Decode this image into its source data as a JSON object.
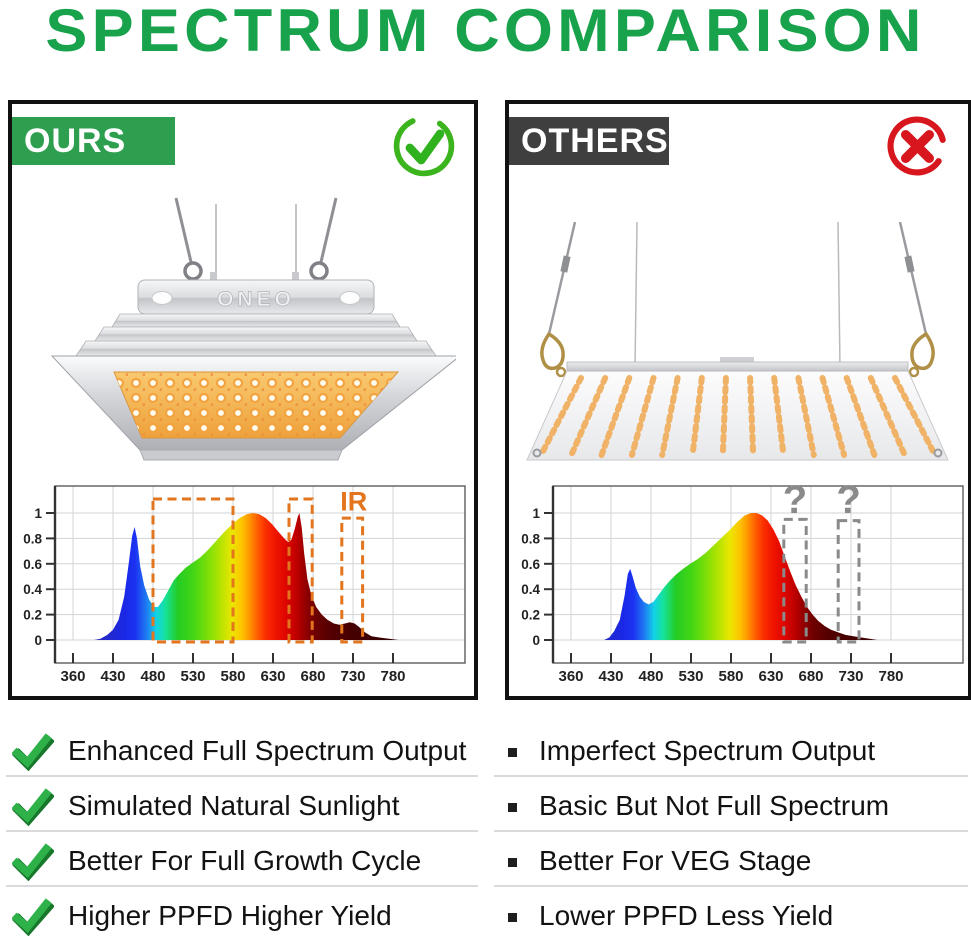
{
  "title": "SPECTRUM COMPARISON",
  "colors": {
    "title_green": "#18A24C",
    "badge_green": "#2E9E4F",
    "badge_dark": "#3F3F3F",
    "check_green": "#2FB14A",
    "cross_red": "#D7161E",
    "ir_orange": "#E2751D",
    "question_gray": "#8A8A8A"
  },
  "panels": {
    "ours": {
      "label": "OURS",
      "verdict": "pass",
      "brand": "ONEO"
    },
    "others": {
      "label": "OTHERS",
      "verdict": "fail"
    }
  },
  "features": {
    "ours": [
      "Enhanced Full Spectrum Output",
      "Simulated Natural Sunlight",
      "Better For Full Growth Cycle",
      "Higher PPFD Higher Yield"
    ],
    "others": [
      "Imperfect Spectrum Output",
      "Basic But Not Full Spectrum",
      "Better For VEG Stage",
      "Lower PPFD Less Yield"
    ]
  },
  "chart_data": [
    {
      "type": "area",
      "panel": "ours",
      "x_ticks": [
        360,
        430,
        480,
        530,
        580,
        630,
        680,
        730,
        780
      ],
      "y_ticks": [
        0,
        0.2,
        0.4,
        0.6,
        0.8,
        1
      ],
      "ylim": [
        0,
        1.2
      ],
      "points": [
        [
          397,
          0
        ],
        [
          408,
          0.01
        ],
        [
          420,
          0.04
        ],
        [
          430,
          0.08
        ],
        [
          437,
          0.16
        ],
        [
          444,
          0.34
        ],
        [
          450,
          0.62
        ],
        [
          454,
          0.82
        ],
        [
          457,
          0.89
        ],
        [
          460,
          0.8
        ],
        [
          464,
          0.58
        ],
        [
          469,
          0.43
        ],
        [
          475,
          0.32
        ],
        [
          481,
          0.26
        ],
        [
          486,
          0.26
        ],
        [
          492,
          0.31
        ],
        [
          499,
          0.39
        ],
        [
          506,
          0.47
        ],
        [
          513,
          0.52
        ],
        [
          521,
          0.57
        ],
        [
          530,
          0.61
        ],
        [
          539,
          0.65
        ],
        [
          549,
          0.71
        ],
        [
          559,
          0.78
        ],
        [
          569,
          0.85
        ],
        [
          579,
          0.91
        ],
        [
          588,
          0.96
        ],
        [
          597,
          0.99
        ],
        [
          605,
          1.0
        ],
        [
          613,
          0.99
        ],
        [
          621,
          0.96
        ],
        [
          629,
          0.91
        ],
        [
          637,
          0.85
        ],
        [
          644,
          0.8
        ],
        [
          649,
          0.77
        ],
        [
          653,
          0.79
        ],
        [
          657,
          0.87
        ],
        [
          661,
          0.97
        ],
        [
          663,
          1.0
        ],
        [
          666,
          0.88
        ],
        [
          669,
          0.68
        ],
        [
          673,
          0.48
        ],
        [
          678,
          0.35
        ],
        [
          684,
          0.26
        ],
        [
          691,
          0.2
        ],
        [
          698,
          0.16
        ],
        [
          706,
          0.13
        ],
        [
          713,
          0.12
        ],
        [
          720,
          0.13
        ],
        [
          726,
          0.14
        ],
        [
          732,
          0.13
        ],
        [
          738,
          0.1
        ],
        [
          745,
          0.06
        ],
        [
          753,
          0.03
        ],
        [
          763,
          0.02
        ],
        [
          775,
          0.01
        ],
        [
          787,
          0
        ]
      ],
      "annotation_color": "#E2751D",
      "annotation_boxes": [
        {
          "x1": 480,
          "x2": 580,
          "top": 1.11
        },
        {
          "x1": 650,
          "x2": 679,
          "top": 1.11
        },
        {
          "x1": 716,
          "x2": 742,
          "top": 0.96
        }
      ],
      "annotation_labels": [
        {
          "text": "IR",
          "x": 731,
          "y": 1.02
        }
      ]
    },
    {
      "type": "area",
      "panel": "others",
      "x_ticks": [
        360,
        430,
        480,
        530,
        580,
        630,
        680,
        730,
        780
      ],
      "y_ticks": [
        0,
        0.2,
        0.4,
        0.6,
        0.8,
        1
      ],
      "ylim": [
        0,
        1.2
      ],
      "points": [
        [
          418,
          0
        ],
        [
          427,
          0.02
        ],
        [
          434,
          0.07
        ],
        [
          441,
          0.16
        ],
        [
          447,
          0.35
        ],
        [
          451,
          0.52
        ],
        [
          454,
          0.56
        ],
        [
          457,
          0.5
        ],
        [
          461,
          0.41
        ],
        [
          466,
          0.34
        ],
        [
          471,
          0.3
        ],
        [
          477,
          0.28
        ],
        [
          483,
          0.3
        ],
        [
          490,
          0.36
        ],
        [
          497,
          0.42
        ],
        [
          504,
          0.47
        ],
        [
          512,
          0.52
        ],
        [
          520,
          0.56
        ],
        [
          529,
          0.6
        ],
        [
          539,
          0.64
        ],
        [
          549,
          0.69
        ],
        [
          559,
          0.75
        ],
        [
          569,
          0.81
        ],
        [
          579,
          0.87
        ],
        [
          588,
          0.93
        ],
        [
          597,
          0.98
        ],
        [
          605,
          1.0
        ],
        [
          612,
          1.0
        ],
        [
          619,
          0.98
        ],
        [
          626,
          0.94
        ],
        [
          633,
          0.87
        ],
        [
          640,
          0.78
        ],
        [
          647,
          0.66
        ],
        [
          654,
          0.54
        ],
        [
          661,
          0.43
        ],
        [
          668,
          0.34
        ],
        [
          675,
          0.26
        ],
        [
          682,
          0.2
        ],
        [
          689,
          0.15
        ],
        [
          697,
          0.11
        ],
        [
          705,
          0.08
        ],
        [
          714,
          0.06
        ],
        [
          723,
          0.04
        ],
        [
          733,
          0.03
        ],
        [
          743,
          0.02
        ],
        [
          753,
          0.01
        ],
        [
          763,
          0
        ]
      ],
      "annotation_color": "#8A8A8A",
      "annotation_boxes": [
        {
          "x1": 646,
          "x2": 674,
          "top": 0.95
        },
        {
          "x1": 714,
          "x2": 740,
          "top": 0.94
        }
      ],
      "annotation_labels": [
        {
          "text": "?",
          "x": 660,
          "y": 1.0
        },
        {
          "text": "?",
          "x": 727,
          "y": 1.0
        }
      ]
    }
  ]
}
